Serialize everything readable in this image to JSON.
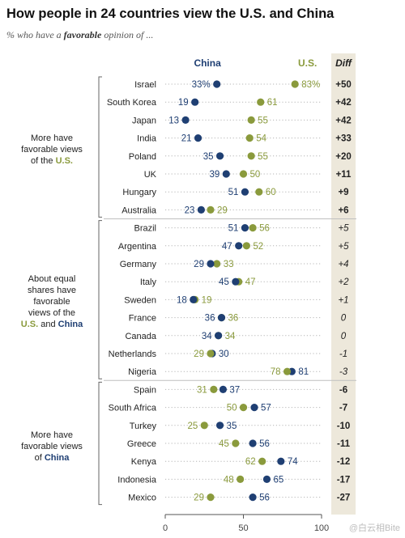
{
  "title": "How people in 24 countries view the U.S. and China",
  "subtitle": {
    "prefix": "% who have a ",
    "emphasis": "favorable",
    "suffix": " opinion of ..."
  },
  "colors": {
    "us": "#8a9a3c",
    "china": "#1f3f73",
    "diff_bg": "#ede8db"
  },
  "groups": [
    {
      "line1": "More have",
      "line2": "favorable views",
      "line3": "of the ",
      "highlight": "U.S.",
      "after": ""
    },
    {
      "line1": "About equal",
      "line2": "shares have",
      "line3": "favorable",
      "line4": "views of the",
      "line5a": "U.S.",
      "line5b": " and ",
      "line5c": "China"
    },
    {
      "line1": "More have",
      "line2": "favorable views",
      "line3": "of ",
      "highlight": "China",
      "after": ""
    }
  ],
  "watermark": "@白云相Bite",
  "chart_data": {
    "type": "dot",
    "series_labels": {
      "china": "China",
      "us": "U.S.",
      "diff": "Diff"
    },
    "xlim": [
      0,
      100
    ],
    "xticks": [
      0,
      50,
      100
    ],
    "countries": [
      {
        "name": "Israel",
        "china": 33,
        "us": 83,
        "diff": "+50",
        "china_label": "33%",
        "us_label": "83%"
      },
      {
        "name": "South Korea",
        "china": 19,
        "us": 61,
        "diff": "+42"
      },
      {
        "name": "Japan",
        "china": 13,
        "us": 55,
        "diff": "+42"
      },
      {
        "name": "India",
        "china": 21,
        "us": 54,
        "diff": "+33"
      },
      {
        "name": "Poland",
        "china": 35,
        "us": 55,
        "diff": "+20"
      },
      {
        "name": "UK",
        "china": 39,
        "us": 50,
        "diff": "+11"
      },
      {
        "name": "Hungary",
        "china": 51,
        "us": 60,
        "diff": "+9"
      },
      {
        "name": "Australia",
        "china": 23,
        "us": 29,
        "diff": "+6"
      },
      {
        "name": "Brazil",
        "china": 51,
        "us": 56,
        "diff": "+5"
      },
      {
        "name": "Argentina",
        "china": 47,
        "us": 52,
        "diff": "+5"
      },
      {
        "name": "Germany",
        "china": 29,
        "us": 33,
        "diff": "+4"
      },
      {
        "name": "Italy",
        "china": 45,
        "us": 47,
        "diff": "+2"
      },
      {
        "name": "Sweden",
        "china": 18,
        "us": 19,
        "diff": "+1"
      },
      {
        "name": "France",
        "china": 36,
        "us": 36,
        "diff": "0"
      },
      {
        "name": "Canada",
        "china": 34,
        "us": 34,
        "diff": "0"
      },
      {
        "name": "Netherlands",
        "china": 30,
        "us": 29,
        "diff": "-1"
      },
      {
        "name": "Nigeria",
        "china": 81,
        "us": 78,
        "diff": "-3"
      },
      {
        "name": "Spain",
        "china": 37,
        "us": 31,
        "diff": "-6"
      },
      {
        "name": "South Africa",
        "china": 57,
        "us": 50,
        "diff": "-7"
      },
      {
        "name": "Turkey",
        "china": 35,
        "us": 25,
        "diff": "-10"
      },
      {
        "name": "Greece",
        "china": 56,
        "us": 45,
        "diff": "-11"
      },
      {
        "name": "Kenya",
        "china": 74,
        "us": 62,
        "diff": "-12"
      },
      {
        "name": "Indonesia",
        "china": 65,
        "us": 48,
        "diff": "-17"
      },
      {
        "name": "Mexico",
        "china": 56,
        "us": 29,
        "diff": "-27"
      }
    ]
  }
}
